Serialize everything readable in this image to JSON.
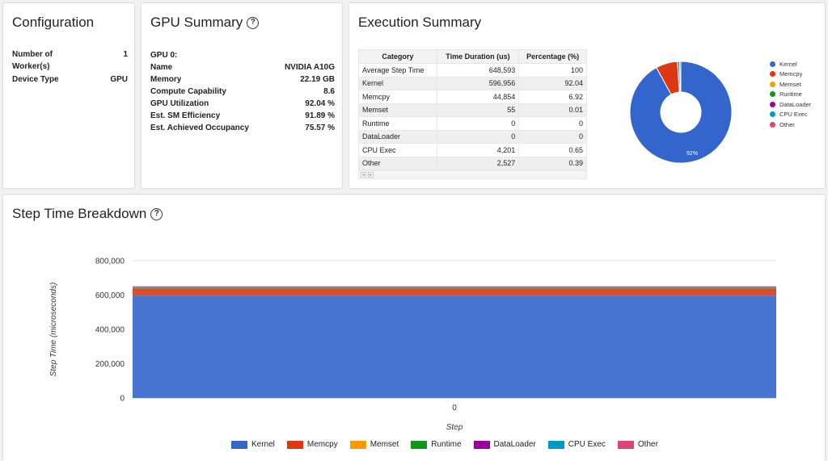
{
  "configuration": {
    "title": "Configuration",
    "rows": [
      {
        "label": "Number of Worker(s)",
        "value": "1"
      },
      {
        "label": "Device Type",
        "value": "GPU"
      }
    ]
  },
  "gpu_summary": {
    "title": "GPU Summary",
    "help": "?",
    "gpu_label": "GPU 0:",
    "rows": [
      {
        "label": "Name",
        "value": "NVIDIA A10G"
      },
      {
        "label": "Memory",
        "value": "22.19 GB"
      },
      {
        "label": "Compute Capability",
        "value": "8.6"
      },
      {
        "label": "GPU Utilization",
        "value": "92.04 %"
      },
      {
        "label": "Est. SM Efficiency",
        "value": "91.89 %"
      },
      {
        "label": "Est. Achieved Occupancy",
        "value": "75.57 %"
      }
    ]
  },
  "execution_summary": {
    "title": "Execution Summary",
    "columns": [
      "Category",
      "Time Duration (us)",
      "Percentage (%)"
    ],
    "rows": [
      [
        "Average Step Time",
        "648,593",
        "100"
      ],
      [
        "Kernel",
        "596,956",
        "92.04"
      ],
      [
        "Memcpy",
        "44,854",
        "6.92"
      ],
      [
        "Memset",
        "55",
        "0.01"
      ],
      [
        "Runtime",
        "0",
        "0"
      ],
      [
        "DataLoader",
        "0",
        "0"
      ],
      [
        "CPU Exec",
        "4,201",
        "0.65"
      ],
      [
        "Other",
        "2,527",
        "0.39"
      ]
    ],
    "scroll_left": "◂",
    "scroll_right": "▸",
    "pie": {
      "slice_label": "92%",
      "slices": [
        {
          "name": "Kernel",
          "value": 92.04,
          "color": "#3366cc"
        },
        {
          "name": "Memcpy",
          "value": 6.92,
          "color": "#dc3912"
        },
        {
          "name": "Memset",
          "value": 0.01,
          "color": "#ff9900"
        },
        {
          "name": "Runtime",
          "value": 0,
          "color": "#109618"
        },
        {
          "name": "DataLoader",
          "value": 0,
          "color": "#990099"
        },
        {
          "name": "CPU Exec",
          "value": 0.65,
          "color": "#0099c6"
        },
        {
          "name": "Other",
          "value": 0.39,
          "color": "#dd4477"
        }
      ]
    }
  },
  "step_time": {
    "title": "Step Time Breakdown",
    "help": "?",
    "chart_data": {
      "type": "area",
      "x": [
        0
      ],
      "xlabel": "Step",
      "ylabel": "Step Time (microseconds)",
      "ylim": [
        0,
        800000
      ],
      "yticks": [
        "0",
        "200,000",
        "400,000",
        "600,000",
        "800,000"
      ],
      "xtick_labels": [
        "0"
      ],
      "stacked": true,
      "grid": true,
      "legend": "bottom",
      "series": [
        {
          "name": "Kernel",
          "values": [
            596956
          ],
          "color": "#3366cc"
        },
        {
          "name": "Memcpy",
          "values": [
            44854
          ],
          "color": "#dc3912"
        },
        {
          "name": "Memset",
          "values": [
            55
          ],
          "color": "#ff9900"
        },
        {
          "name": "Runtime",
          "values": [
            0
          ],
          "color": "#109618"
        },
        {
          "name": "DataLoader",
          "values": [
            0
          ],
          "color": "#990099"
        },
        {
          "name": "CPU Exec",
          "values": [
            4201
          ],
          "color": "#0099c6"
        },
        {
          "name": "Other",
          "values": [
            2527
          ],
          "color": "#dd4477"
        }
      ]
    }
  }
}
